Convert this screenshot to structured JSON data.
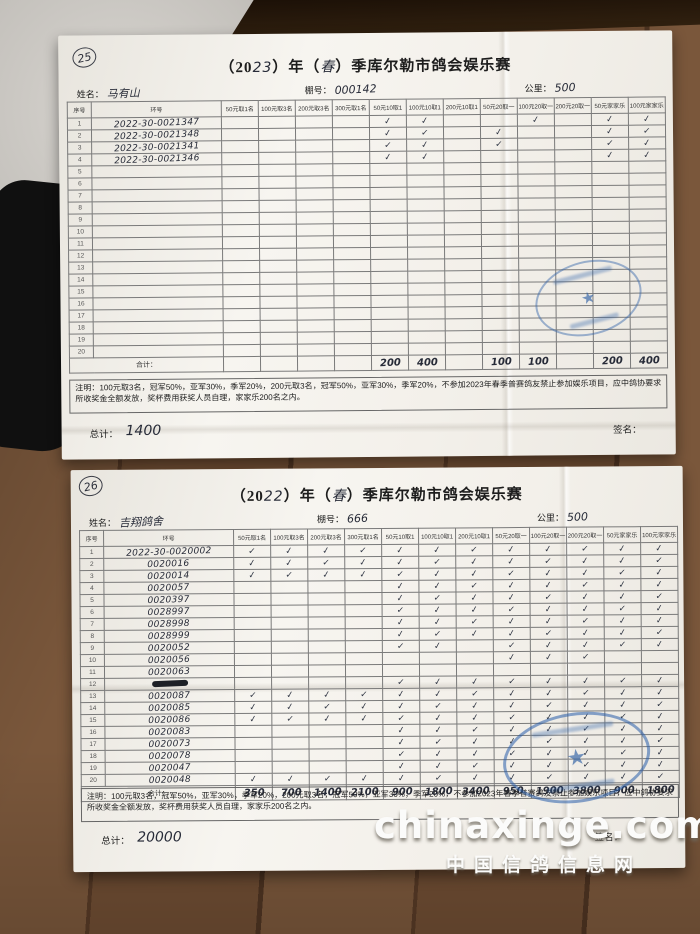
{
  "check_glyph": "✓",
  "colors": {
    "ink": "#2e3442",
    "stamp_blue": "#2f62a8",
    "paper": "#f4f2ec",
    "wood": "#6f4d33"
  },
  "icons": {
    "stamp": "association-stamp-icon",
    "star": "star-icon"
  },
  "watermark": {
    "line1": "chinaxinge.com",
    "line2": "中国信鸽信息网"
  },
  "form1": {
    "page_no": "25",
    "title_prefix": "（20",
    "title_year": "23",
    "title_mid": "）年（",
    "title_season": "春",
    "title_suffix": "）季库尔勒市鸽会娱乐赛",
    "fields": {
      "name_label": "姓名：",
      "name_value": "马有山",
      "coop_label": "棚号：",
      "coop_value": "000142",
      "km_label": "公里：",
      "km_value": "500"
    },
    "table": {
      "seq_header": "序号",
      "ring_header": "环号",
      "columns": [
        "50元取1名",
        "100元取3名",
        "200元取3名",
        "300元取1名",
        "50元10取1",
        "100元10取1",
        "200元10取1",
        "50元20取一",
        "100元20取一",
        "200元20取一",
        "50元家家乐",
        "100元家家乐"
      ],
      "rows": [
        {
          "seq": "1",
          "ring": "2022-30-0021347",
          "checks": [
            0,
            0,
            0,
            0,
            1,
            1,
            0,
            0,
            1,
            0,
            1,
            1
          ]
        },
        {
          "seq": "2",
          "ring": "2022-30-0021348",
          "checks": [
            0,
            0,
            0,
            0,
            1,
            1,
            0,
            1,
            0,
            0,
            1,
            1
          ]
        },
        {
          "seq": "3",
          "ring": "2022-30-0021341",
          "checks": [
            0,
            0,
            0,
            0,
            1,
            1,
            0,
            1,
            0,
            0,
            1,
            1
          ]
        },
        {
          "seq": "4",
          "ring": "2022-30-0021346",
          "checks": [
            0,
            0,
            0,
            0,
            1,
            1,
            0,
            0,
            0,
            0,
            1,
            1
          ]
        },
        {
          "seq": "5",
          "ring": "",
          "checks": [
            0,
            0,
            0,
            0,
            0,
            0,
            0,
            0,
            0,
            0,
            0,
            0
          ]
        },
        {
          "seq": "6",
          "ring": "",
          "checks": [
            0,
            0,
            0,
            0,
            0,
            0,
            0,
            0,
            0,
            0,
            0,
            0
          ]
        },
        {
          "seq": "7",
          "ring": "",
          "checks": [
            0,
            0,
            0,
            0,
            0,
            0,
            0,
            0,
            0,
            0,
            0,
            0
          ]
        },
        {
          "seq": "8",
          "ring": "",
          "checks": [
            0,
            0,
            0,
            0,
            0,
            0,
            0,
            0,
            0,
            0,
            0,
            0
          ]
        },
        {
          "seq": "9",
          "ring": "",
          "checks": [
            0,
            0,
            0,
            0,
            0,
            0,
            0,
            0,
            0,
            0,
            0,
            0
          ]
        },
        {
          "seq": "10",
          "ring": "",
          "checks": [
            0,
            0,
            0,
            0,
            0,
            0,
            0,
            0,
            0,
            0,
            0,
            0
          ]
        },
        {
          "seq": "11",
          "ring": "",
          "checks": [
            0,
            0,
            0,
            0,
            0,
            0,
            0,
            0,
            0,
            0,
            0,
            0
          ]
        },
        {
          "seq": "12",
          "ring": "",
          "checks": [
            0,
            0,
            0,
            0,
            0,
            0,
            0,
            0,
            0,
            0,
            0,
            0
          ]
        },
        {
          "seq": "13",
          "ring": "",
          "checks": [
            0,
            0,
            0,
            0,
            0,
            0,
            0,
            0,
            0,
            0,
            0,
            0
          ]
        },
        {
          "seq": "14",
          "ring": "",
          "checks": [
            0,
            0,
            0,
            0,
            0,
            0,
            0,
            0,
            0,
            0,
            0,
            0
          ]
        },
        {
          "seq": "15",
          "ring": "",
          "checks": [
            0,
            0,
            0,
            0,
            0,
            0,
            0,
            0,
            0,
            0,
            0,
            0
          ]
        },
        {
          "seq": "16",
          "ring": "",
          "checks": [
            0,
            0,
            0,
            0,
            0,
            0,
            0,
            0,
            0,
            0,
            0,
            0
          ]
        },
        {
          "seq": "17",
          "ring": "",
          "checks": [
            0,
            0,
            0,
            0,
            0,
            0,
            0,
            0,
            0,
            0,
            0,
            0
          ]
        },
        {
          "seq": "18",
          "ring": "",
          "checks": [
            0,
            0,
            0,
            0,
            0,
            0,
            0,
            0,
            0,
            0,
            0,
            0
          ]
        },
        {
          "seq": "19",
          "ring": "",
          "checks": [
            0,
            0,
            0,
            0,
            0,
            0,
            0,
            0,
            0,
            0,
            0,
            0
          ]
        },
        {
          "seq": "20",
          "ring": "",
          "checks": [
            0,
            0,
            0,
            0,
            0,
            0,
            0,
            0,
            0,
            0,
            0,
            0
          ]
        }
      ],
      "total_label": "合计：",
      "totals": [
        "",
        "",
        "",
        "",
        "200",
        "400",
        "",
        "100",
        "100",
        "",
        "200",
        "400"
      ]
    },
    "note": "注明：100元取3名，冠军50%，亚军30%，季军20%，200元取3名，冠军50%，亚军30%，季军20%，不参加2023年春季普赛鸽友禁止参加娱乐项目，应中鸽协要求所收奖金全额发放，奖杯费用获奖人员自理，家家乐200名之内。",
    "grand_total_label": "总计：",
    "grand_total": "1400",
    "sign_label": "签名："
  },
  "form2": {
    "page_no": "26",
    "title_prefix": "（20",
    "title_year": "22",
    "title_mid": "）年（",
    "title_season": "春",
    "title_suffix": "）季库尔勒市鸽会娱乐赛",
    "fields": {
      "name_label": "姓名：",
      "name_value": "吉翔鸽舍",
      "coop_label": "棚号：",
      "coop_value": "666",
      "km_label": "公里：",
      "km_value": "500"
    },
    "table": {
      "seq_header": "序号",
      "ring_header": "环号",
      "columns": [
        "50元取1名",
        "100元取3名",
        "200元取3名",
        "300元取1名",
        "50元10取1",
        "100元10取1",
        "200元10取1",
        "50元20取一",
        "100元20取一",
        "200元20取一",
        "50元家家乐",
        "100元家家乐"
      ],
      "rows": [
        {
          "seq": "1",
          "ring": "2022-30-0020002",
          "checks": [
            1,
            1,
            1,
            1,
            1,
            1,
            1,
            1,
            1,
            1,
            1,
            1
          ]
        },
        {
          "seq": "2",
          "ring": "0020016",
          "checks": [
            1,
            1,
            1,
            1,
            1,
            1,
            1,
            1,
            1,
            1,
            1,
            1
          ]
        },
        {
          "seq": "3",
          "ring": "0020014",
          "checks": [
            1,
            1,
            1,
            1,
            1,
            1,
            1,
            1,
            1,
            1,
            1,
            1
          ]
        },
        {
          "seq": "4",
          "ring": "0020057",
          "checks": [
            0,
            0,
            0,
            0,
            1,
            1,
            1,
            1,
            1,
            1,
            1,
            1
          ]
        },
        {
          "seq": "5",
          "ring": "0020397",
          "checks": [
            0,
            0,
            0,
            0,
            1,
            1,
            1,
            1,
            1,
            1,
            1,
            1
          ]
        },
        {
          "seq": "6",
          "ring": "0028997",
          "checks": [
            0,
            0,
            0,
            0,
            1,
            1,
            1,
            1,
            1,
            1,
            1,
            1
          ]
        },
        {
          "seq": "7",
          "ring": "0028998",
          "checks": [
            0,
            0,
            0,
            0,
            1,
            1,
            1,
            1,
            1,
            1,
            1,
            1
          ]
        },
        {
          "seq": "8",
          "ring": "0028999",
          "checks": [
            0,
            0,
            0,
            0,
            1,
            1,
            1,
            1,
            1,
            1,
            1,
            1
          ]
        },
        {
          "seq": "9",
          "ring": "0020052",
          "checks": [
            0,
            0,
            0,
            0,
            1,
            1,
            0,
            1,
            1,
            1,
            1,
            1
          ]
        },
        {
          "seq": "10",
          "ring": "0020056",
          "checks": [
            0,
            0,
            0,
            0,
            0,
            0,
            0,
            1,
            1,
            1,
            0,
            0
          ]
        },
        {
          "seq": "11",
          "ring": "0020063",
          "checks": [
            0,
            0,
            0,
            0,
            0,
            0,
            0,
            0,
            0,
            0,
            0,
            0
          ]
        },
        {
          "seq": "12",
          "ring": "",
          "scribbled": true,
          "checks": [
            0,
            0,
            0,
            0,
            1,
            1,
            1,
            1,
            1,
            1,
            1,
            1
          ]
        },
        {
          "seq": "13",
          "ring": "0020087",
          "checks": [
            1,
            1,
            1,
            1,
            1,
            1,
            1,
            1,
            1,
            1,
            1,
            1
          ]
        },
        {
          "seq": "14",
          "ring": "0020085",
          "checks": [
            1,
            1,
            1,
            1,
            1,
            1,
            1,
            1,
            1,
            1,
            1,
            1
          ]
        },
        {
          "seq": "15",
          "ring": "0020086",
          "checks": [
            1,
            1,
            1,
            1,
            1,
            1,
            1,
            1,
            1,
            1,
            1,
            1
          ]
        },
        {
          "seq": "16",
          "ring": "0020083",
          "checks": [
            0,
            0,
            0,
            0,
            1,
            1,
            1,
            1,
            1,
            1,
            1,
            1
          ]
        },
        {
          "seq": "17",
          "ring": "0020073",
          "checks": [
            0,
            0,
            0,
            0,
            1,
            1,
            1,
            1,
            1,
            1,
            1,
            1
          ]
        },
        {
          "seq": "18",
          "ring": "0020078",
          "checks": [
            0,
            0,
            0,
            0,
            1,
            1,
            1,
            1,
            1,
            1,
            1,
            1
          ]
        },
        {
          "seq": "19",
          "ring": "0020047",
          "checks": [
            0,
            0,
            0,
            0,
            1,
            1,
            1,
            1,
            1,
            1,
            1,
            1
          ]
        },
        {
          "seq": "20",
          "ring": "0020048",
          "checks": [
            1,
            1,
            1,
            1,
            1,
            1,
            1,
            1,
            1,
            1,
            1,
            1
          ]
        }
      ],
      "total_label": "合计：",
      "totals": [
        "350",
        "700",
        "1400",
        "2100",
        "900",
        "1800",
        "3400",
        "950",
        "1900",
        "3800",
        "900",
        "1800"
      ]
    },
    "note": "注明：100元取3名，冠军50%，亚军30%，季军20%，200元取3名，冠军50%，亚军30%，季军20%，不参加2023年春季普赛鸽友禁止参加娱乐项目，应中鸽协要求所收奖金全额发放，奖杯费用获奖人员自理，家家乐200名之内。",
    "grand_total_label": "总计：",
    "grand_total": "20000",
    "sign_label": "签名："
  }
}
